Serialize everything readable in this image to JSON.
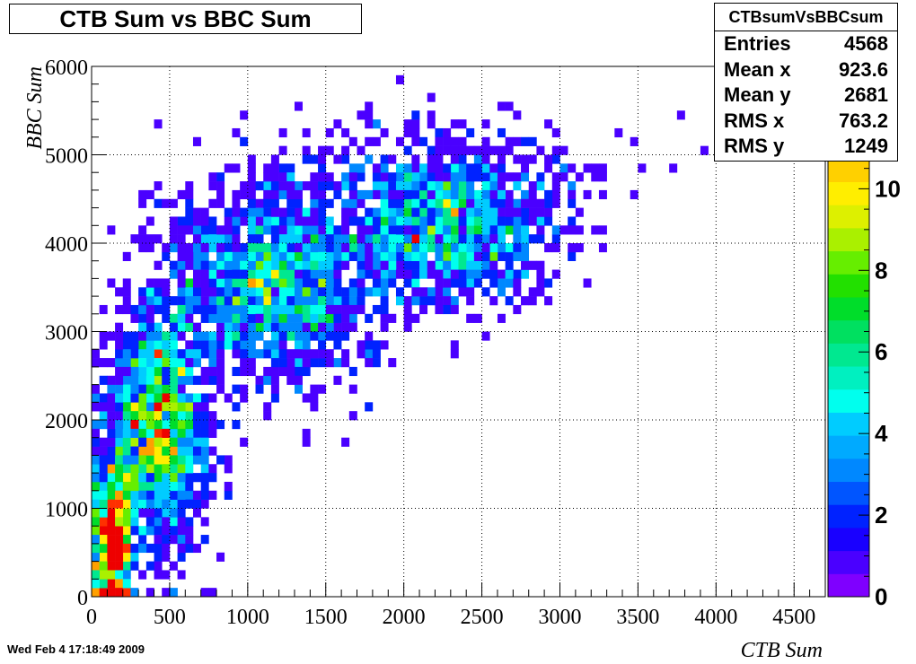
{
  "title": "CTB Sum vs BBC Sum",
  "timestamp": "Wed Feb  4 17:18:49 2009",
  "stats": {
    "name": "CTBsumVsBBCsum",
    "rows": [
      {
        "label": "Entries",
        "value": "4568"
      },
      {
        "label": "Mean x",
        "value": "923.6"
      },
      {
        "label": "Mean y",
        "value": "2681"
      },
      {
        "label": "RMS x",
        "value": "763.2"
      },
      {
        "label": "RMS y",
        "value": "1249"
      }
    ]
  },
  "chart_data": {
    "type": "heatmap",
    "title": "CTB Sum vs BBC Sum",
    "xlabel": "CTB Sum",
    "ylabel": "BBC Sum",
    "xlim": [
      0,
      4700
    ],
    "ylim": [
      0,
      6000
    ],
    "x_ticks": [
      "0",
      "500",
      "1000",
      "1500",
      "2000",
      "2500",
      "3000",
      "3500",
      "4000",
      "4500"
    ],
    "y_ticks": [
      "0",
      "1000",
      "2000",
      "3000",
      "4000",
      "5000",
      "6000"
    ],
    "z_ticks": [
      "0",
      "2",
      "4",
      "6",
      "8",
      "10"
    ],
    "zlim": [
      0,
      13
    ],
    "grid": true,
    "palette": [
      "#7f00ff",
      "#4a00ff",
      "#1900ff",
      "#0022ff",
      "#0055ff",
      "#0088ff",
      "#00aaff",
      "#00ccff",
      "#00ffee",
      "#00f0c0",
      "#00e890",
      "#00e060",
      "#00dd2a",
      "#22e000",
      "#66ee00",
      "#aaf000",
      "#ddf000",
      "#ffee00",
      "#ffd000",
      "#ffa000",
      "#ff6a00",
      "#ff3000",
      "#ee0000"
    ],
    "bin_size": [
      50,
      100
    ],
    "clusters": [
      {
        "x": 130,
        "y": 600,
        "sx": 70,
        "sy": 450,
        "n": 650,
        "peak": 12
      },
      {
        "x": 420,
        "y": 1900,
        "sx": 170,
        "sy": 700,
        "n": 1350,
        "peak": 8
      },
      {
        "x": 1150,
        "y": 3500,
        "sx": 350,
        "sy": 550,
        "n": 1300,
        "peak": 6
      },
      {
        "x": 2250,
        "y": 4200,
        "sx": 380,
        "sy": 450,
        "n": 1100,
        "peak": 5
      },
      {
        "x": 2000,
        "y": 4900,
        "sx": 700,
        "sy": 350,
        "n": 168,
        "peak": 2
      }
    ]
  }
}
